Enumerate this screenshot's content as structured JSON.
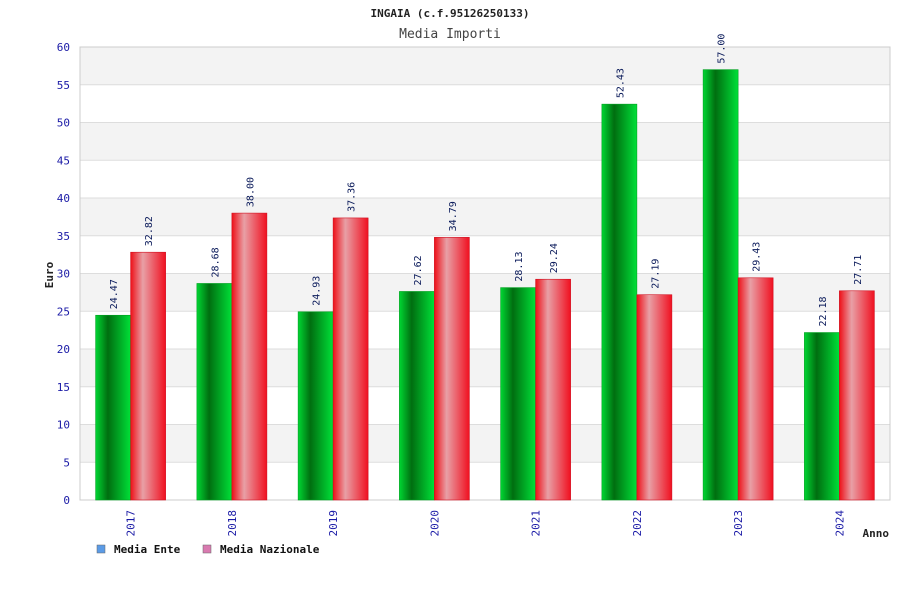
{
  "chart_data": {
    "type": "bar",
    "title": "INGAIA (c.f.95126250133)",
    "subtitle": "Media Importi",
    "xlabel": "Anno",
    "ylabel": "Euro",
    "ylim": [
      0,
      60
    ],
    "yticks": [
      "0",
      "5",
      "10",
      "15",
      "20",
      "25",
      "30",
      "35",
      "40",
      "45",
      "50",
      "55",
      "60"
    ],
    "categories": [
      "2017",
      "2018",
      "2019",
      "2020",
      "2021",
      "2022",
      "2023",
      "2024"
    ],
    "series": [
      {
        "name": "Media Ente",
        "values": [
          24.47,
          28.68,
          24.93,
          27.62,
          28.13,
          52.43,
          57.0,
          22.18
        ],
        "labels": [
          "24.47",
          "28.68",
          "24.93",
          "27.62",
          "28.13",
          "52.43",
          "57.00",
          "22.18"
        ],
        "color": "#00b02a",
        "legend_color": "#5b9be6"
      },
      {
        "name": "Media Nazionale",
        "values": [
          32.82,
          38.0,
          37.36,
          34.79,
          29.24,
          27.19,
          29.43,
          27.71
        ],
        "labels": [
          "32.82",
          "38.00",
          "37.36",
          "34.79",
          "29.24",
          "27.19",
          "29.43",
          "27.71"
        ],
        "color": "#e8202a",
        "legend_color": "#d97ab0"
      }
    ],
    "grid": true,
    "grid_style": "alternating horizontal bands",
    "legend_position": "bottom-left"
  }
}
